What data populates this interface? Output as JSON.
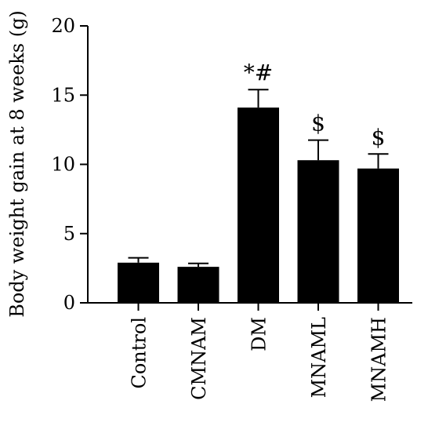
{
  "chart_data": {
    "type": "bar",
    "title": "",
    "xlabel": "",
    "ylabel": "Body weight gain at 8 weeks (g)",
    "ylim": [
      0,
      20
    ],
    "yticks": [
      0,
      5,
      10,
      15,
      20
    ],
    "categories": [
      "Control",
      "CMNAM",
      "DM",
      "MNAML",
      "MNAMH"
    ],
    "values": [
      2.9,
      2.6,
      14.1,
      10.3,
      9.7
    ],
    "errors": [
      0.35,
      0.25,
      1.3,
      1.45,
      1.05
    ],
    "annotations": [
      "",
      "",
      "*#",
      "$",
      "$"
    ],
    "bar_color": "#000000",
    "grid": false,
    "legend": "none"
  }
}
